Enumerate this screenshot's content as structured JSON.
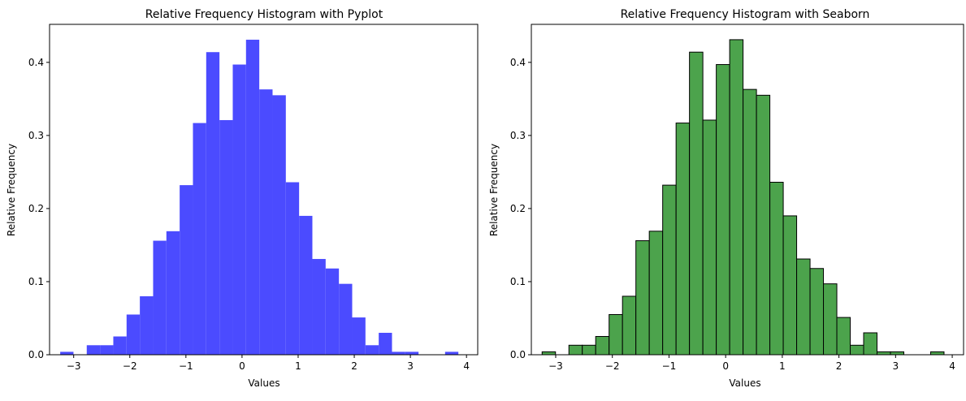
{
  "chart_data": [
    {
      "type": "bar",
      "title": "Relative Frequency Histogram with Pyplot",
      "xlabel": "Values",
      "ylabel": "Relative Frequency",
      "xlim": [
        -3.43,
        4.2
      ],
      "ylim": [
        0,
        0.452
      ],
      "xticks": [
        -3,
        -2,
        -1,
        0,
        1,
        2,
        3,
        4
      ],
      "xtick_labels": [
        "−3",
        "−2",
        "−1",
        "0",
        "1",
        "2",
        "3",
        "4"
      ],
      "yticks": [
        0.0,
        0.1,
        0.2,
        0.3,
        0.4
      ],
      "ytick_labels": [
        "0.0",
        "0.1",
        "0.2",
        "0.3",
        "0.4"
      ],
      "bin_start": -3.24,
      "bin_width": 0.2365,
      "values": [
        0.004,
        0,
        0.013,
        0.013,
        0.025,
        0.055,
        0.08,
        0.156,
        0.169,
        0.232,
        0.317,
        0.414,
        0.321,
        0.397,
        0.431,
        0.363,
        0.355,
        0.236,
        0.19,
        0.131,
        0.118,
        0.097,
        0.051,
        0.013,
        0.03,
        0.004,
        0.004,
        0,
        0,
        0.004
      ],
      "color": "#4b4bff",
      "edgecolor": "none",
      "grid": false
    },
    {
      "type": "bar",
      "title": "Relative Frequency Histogram with Seaborn",
      "xlabel": "Values",
      "ylabel": "Relative Frequency",
      "xlim": [
        -3.43,
        4.2
      ],
      "ylim": [
        0,
        0.452
      ],
      "xticks": [
        -3,
        -2,
        -1,
        0,
        1,
        2,
        3,
        4
      ],
      "xtick_labels": [
        "−3",
        "−2",
        "−1",
        "0",
        "1",
        "2",
        "3",
        "4"
      ],
      "yticks": [
        0.0,
        0.1,
        0.2,
        0.3,
        0.4
      ],
      "ytick_labels": [
        "0.0",
        "0.1",
        "0.2",
        "0.3",
        "0.4"
      ],
      "bin_start": -3.24,
      "bin_width": 0.2365,
      "values": [
        0.004,
        0,
        0.013,
        0.013,
        0.025,
        0.055,
        0.08,
        0.156,
        0.169,
        0.232,
        0.317,
        0.414,
        0.321,
        0.397,
        0.431,
        0.363,
        0.355,
        0.236,
        0.19,
        0.131,
        0.118,
        0.097,
        0.051,
        0.013,
        0.03,
        0.004,
        0.004,
        0,
        0,
        0.004
      ],
      "color": "#4ca34c",
      "edgecolor": "#000000",
      "grid": false
    }
  ]
}
